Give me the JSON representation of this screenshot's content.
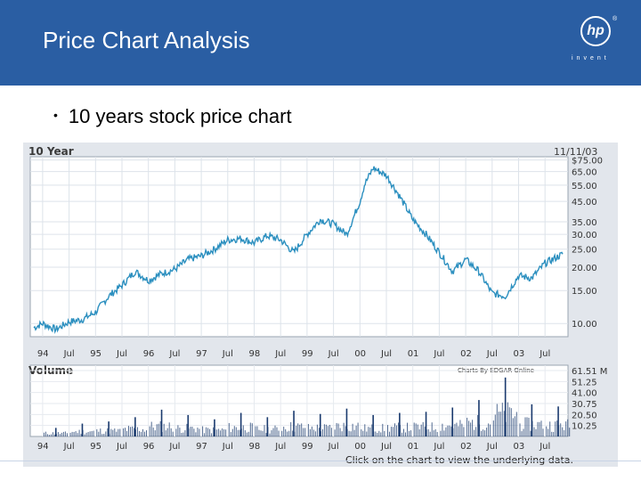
{
  "slide": {
    "title": "Price Chart Analysis",
    "bullet": "10 years stock price chart",
    "logo_text": "hp",
    "logo_mark": "®",
    "logo_tagline": "invent"
  },
  "colors": {
    "header": "#2a5ea3",
    "line": "#2b8fbf",
    "bars": "#1a3a6e",
    "plot_bg": "#ffffff",
    "frame_bg": "#e2e6ec"
  },
  "chart_data": [
    {
      "type": "line",
      "title": "10 Year",
      "date_label": "11/11/03",
      "x_tick_labels": [
        "94",
        "Jul",
        "95",
        "Jul",
        "96",
        "Jul",
        "97",
        "Jul",
        "98",
        "Jul",
        "99",
        "Jul",
        "00",
        "Jul",
        "01",
        "Jul",
        "02",
        "Jul",
        "03",
        "Jul"
      ],
      "y_tick_labels": [
        "$75.00",
        "65.00",
        "55.00",
        "45.00",
        "35.00",
        "30.00",
        "25.00",
        "20.00",
        "15.00",
        "10.00"
      ],
      "y_scale": "log",
      "ylim": [
        8.5,
        78
      ],
      "grid": true,
      "series": [
        {
          "x": [
            "1993-11",
            "1994-01",
            "1994-04",
            "1994-07",
            "1994-10",
            "1995-01",
            "1995-04",
            "1995-07",
            "1995-10",
            "1996-01",
            "1996-04",
            "1996-07",
            "1996-10",
            "1997-01",
            "1997-04",
            "1997-07",
            "1997-10",
            "1998-01",
            "1998-04",
            "1998-07",
            "1998-10",
            "1999-01",
            "1999-04",
            "1999-07",
            "1999-10",
            "2000-01",
            "2000-02",
            "2000-04",
            "2000-07",
            "2000-10",
            "2001-01",
            "2001-04",
            "2001-07",
            "2001-10",
            "2002-01",
            "2002-04",
            "2002-07",
            "2002-10",
            "2003-01",
            "2003-04",
            "2003-07",
            "2003-11"
          ],
          "y": [
            9.5,
            10.0,
            9.3,
            10.2,
            10.5,
            11.5,
            14.0,
            16.0,
            19.0,
            17.0,
            18.5,
            19.5,
            22.0,
            23.0,
            25.0,
            28.0,
            28.5,
            27.0,
            29.5,
            28.0,
            24.0,
            30.0,
            36.0,
            34.0,
            30.0,
            45.0,
            55.0,
            68.0,
            62.0,
            48.0,
            36.0,
            30.0,
            24.0,
            19.0,
            22.0,
            19.0,
            14.5,
            14.0,
            18.0,
            17.5,
            21.0,
            23.5
          ]
        }
      ]
    },
    {
      "type": "bar",
      "title": "Volume",
      "attribution": "Charts By EDGAR Online",
      "x_tick_labels": [
        "94",
        "Jul",
        "95",
        "Jul",
        "96",
        "Jul",
        "97",
        "Jul",
        "98",
        "Jul",
        "99",
        "Jul",
        "00",
        "Jul",
        "01",
        "Jul",
        "02",
        "Jul",
        "03",
        "Jul"
      ],
      "y_tick_labels": [
        "61.51 M",
        "51.25",
        "41.00",
        "30.75",
        "20.50",
        "10.25"
      ],
      "ylim": [
        0,
        61.51
      ],
      "x": [
        "1994",
        "1994",
        "1995",
        "1995",
        "1996",
        "1996",
        "1997",
        "1997",
        "1998",
        "1998",
        "1999",
        "1999",
        "2000",
        "2000",
        "2001",
        "2001",
        "2002",
        "2002",
        "2003",
        "2003"
      ],
      "values": [
        8,
        12,
        14,
        18,
        25,
        20,
        16,
        22,
        18,
        24,
        21,
        26,
        20,
        22,
        23,
        27,
        34,
        55,
        30,
        28
      ]
    }
  ],
  "footer_text": "Click on the chart to view the underlying data."
}
